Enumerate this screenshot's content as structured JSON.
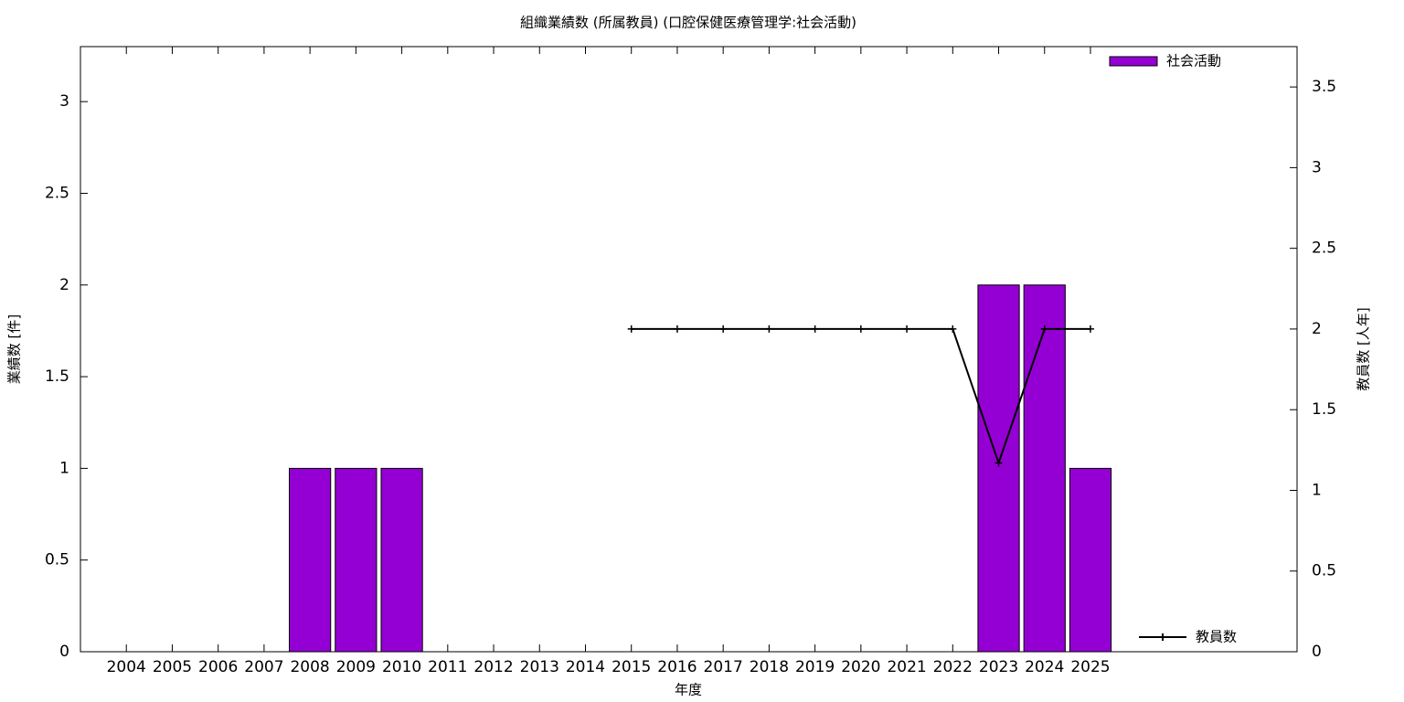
{
  "chart_data": {
    "type": "bar_line",
    "title": "組織業績数 (所属教員) (口腔保健医療管理学:社会活動)",
    "x_label": "年度",
    "y_label": "業績数 [件]",
    "y2_label": "教員数 [人年]",
    "x": [
      2004,
      2005,
      2006,
      2007,
      2008,
      2009,
      2010,
      2011,
      2012,
      2013,
      2014,
      2015,
      2016,
      2017,
      2018,
      2019,
      2020,
      2021,
      2022,
      2023,
      2024,
      2025
    ],
    "xlim": [
      2003,
      2029.5
    ],
    "xticks": [
      2004,
      2005,
      2006,
      2007,
      2008,
      2009,
      2010,
      2011,
      2012,
      2013,
      2014,
      2015,
      2016,
      2017,
      2018,
      2019,
      2020,
      2021,
      2022,
      2023,
      2024,
      2025
    ],
    "ylim": [
      0,
      3.3
    ],
    "yticks": [
      0,
      0.5,
      1,
      1.5,
      2,
      2.5,
      3
    ],
    "y2lim": [
      0,
      3.75
    ],
    "y2ticks": [
      0,
      0.5,
      1,
      1.5,
      2,
      2.5,
      3,
      3.5
    ],
    "series": [
      {
        "name": "社会活動",
        "type": "bar",
        "color": "#9400d3",
        "values": [
          0,
          0,
          0,
          0,
          1,
          1,
          1,
          0,
          0,
          0,
          0,
          0,
          0,
          0,
          0,
          0,
          0,
          0,
          0,
          2,
          2,
          1
        ]
      },
      {
        "name": "教員数",
        "type": "line",
        "axis": "y2",
        "color": "#000000",
        "values": [
          null,
          null,
          null,
          null,
          null,
          null,
          null,
          null,
          null,
          null,
          null,
          2,
          2,
          2,
          2,
          2,
          2,
          2,
          2,
          1.17,
          2,
          2
        ]
      }
    ]
  }
}
